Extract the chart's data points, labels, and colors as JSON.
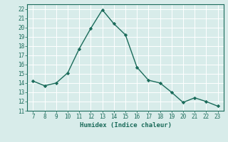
{
  "x": [
    7,
    8,
    9,
    10,
    11,
    12,
    13,
    14,
    15,
    16,
    17,
    18,
    19,
    20,
    21,
    22,
    23
  ],
  "y": [
    14.2,
    13.7,
    14.0,
    15.1,
    17.7,
    19.9,
    21.9,
    20.4,
    19.2,
    15.7,
    14.3,
    14.0,
    13.0,
    11.9,
    12.4,
    12.0,
    11.5
  ],
  "xlabel": "Humidex (Indice chaleur)",
  "ylim": [
    11,
    22.5
  ],
  "xlim": [
    6.5,
    23.5
  ],
  "yticks": [
    11,
    12,
    13,
    14,
    15,
    16,
    17,
    18,
    19,
    20,
    21,
    22
  ],
  "xticks": [
    7,
    8,
    9,
    10,
    11,
    12,
    13,
    14,
    15,
    16,
    17,
    18,
    19,
    20,
    21,
    22,
    23
  ],
  "line_color": "#1a6b5a",
  "marker_color": "#1a6b5a",
  "bg_color": "#d8ecea",
  "grid_color": "#ffffff",
  "font_color": "#1a6b5a",
  "tick_fontsize": 5.5,
  "xlabel_fontsize": 6.5
}
